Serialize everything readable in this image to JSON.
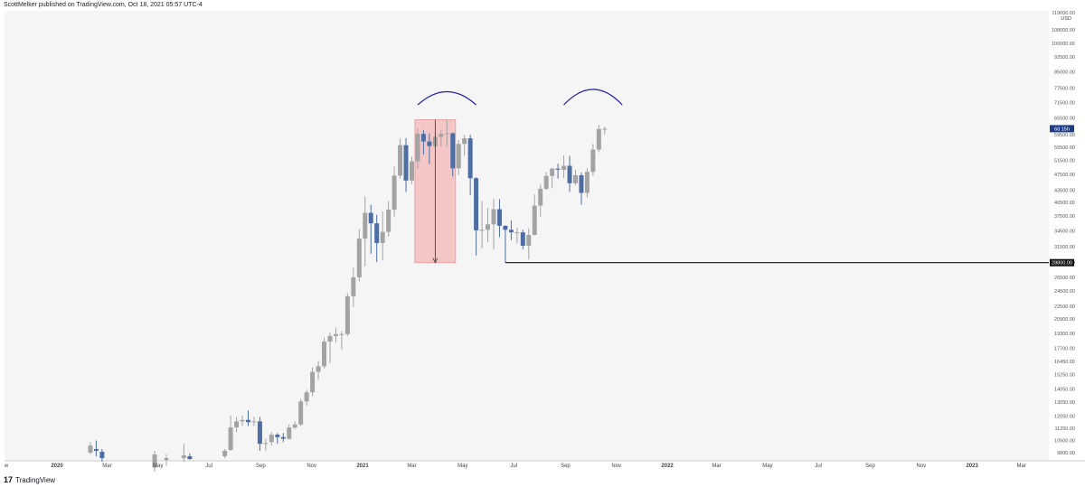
{
  "header": {
    "text": "ScottMelker published on TradingView.com, Oct 18, 2021 05:57 UTC-4"
  },
  "footer": {
    "logo": "17",
    "brand": "TradingView"
  },
  "colors": {
    "up": "#a3a3a3",
    "down": "#4e6ea3",
    "zone_fill": "#f5c6c6",
    "zone_stroke": "#e5a4a4",
    "arc": "#1c1fa8",
    "support": "#111111",
    "price_label_bg": "#1f3c8a",
    "plot_bg": "#f5f5f5"
  },
  "chart_data": {
    "type": "candlestick",
    "interval": "weekly",
    "currency": "USD",
    "y_scale": "log",
    "ylim": [
      9500,
      119000
    ],
    "grid": false,
    "y_ticks": [
      "119000.00",
      "108000.00",
      "100000.00",
      "92500.00",
      "85000.00",
      "77500.00",
      "71500.00",
      "65500.00",
      "59500.00",
      "55500.00",
      "51500.00",
      "47500.00",
      "43500.00",
      "40500.00",
      "37500.00",
      "34500.00",
      "31500.00",
      "28800.00",
      "26500.00",
      "24500.00",
      "22500.00",
      "20900.00",
      "19300.00",
      "17700.00",
      "16450.00",
      "15250.00",
      "14050.00",
      "13050.00",
      "12050.00",
      "11250.00",
      "10500.00",
      "9800.00"
    ],
    "x_ticks": [
      {
        "label": "w",
        "date": "2019-11-15"
      },
      {
        "label": "2020",
        "date": "2020-01-01",
        "bold": true
      },
      {
        "label": "Mar",
        "date": "2020-03-01"
      },
      {
        "label": "May",
        "date": "2020-05-01"
      },
      {
        "label": "Jul",
        "date": "2020-07-01"
      },
      {
        "label": "Sep",
        "date": "2020-09-01"
      },
      {
        "label": "Nov",
        "date": "2020-11-01"
      },
      {
        "label": "2021",
        "date": "2021-01-01",
        "bold": true
      },
      {
        "label": "Mar",
        "date": "2021-03-01"
      },
      {
        "label": "May",
        "date": "2021-05-01"
      },
      {
        "label": "Jul",
        "date": "2021-07-01"
      },
      {
        "label": "Sep",
        "date": "2021-09-01"
      },
      {
        "label": "Nov",
        "date": "2021-11-01"
      },
      {
        "label": "2022",
        "date": "2022-01-01",
        "bold": true
      },
      {
        "label": "Mar",
        "date": "2022-03-01"
      },
      {
        "label": "May",
        "date": "2022-05-01"
      },
      {
        "label": "Jul",
        "date": "2022-07-01"
      },
      {
        "label": "Sep",
        "date": "2022-09-01"
      },
      {
        "label": "Nov",
        "date": "2022-11-01"
      },
      {
        "label": "2023",
        "date": "2023-01-01",
        "bold": true
      },
      {
        "label": "Mar",
        "date": "2023-03-01"
      }
    ],
    "candles": [
      {
        "date": "2020-02-10",
        "o": 9800,
        "h": 10400,
        "l": 9700,
        "c": 10200
      },
      {
        "date": "2020-02-17",
        "o": 10000,
        "h": 10500,
        "l": 9600,
        "c": 9900
      },
      {
        "date": "2020-02-24",
        "o": 9850,
        "h": 10000,
        "l": 9300,
        "c": 9500
      },
      {
        "date": "2020-04-27",
        "o": 9000,
        "h": 9900,
        "l": 8800,
        "c": 9700
      },
      {
        "date": "2020-05-11",
        "o": 9400,
        "h": 9700,
        "l": 9100,
        "c": 9500
      },
      {
        "date": "2020-06-01",
        "o": 9500,
        "h": 10300,
        "l": 9300,
        "c": 9650
      },
      {
        "date": "2020-06-08",
        "o": 9600,
        "h": 9750,
        "l": 9400,
        "c": 9450
      },
      {
        "date": "2020-07-20",
        "o": 9600,
        "h": 10000,
        "l": 9500,
        "c": 9900
      },
      {
        "date": "2020-07-27",
        "o": 9950,
        "h": 12100,
        "l": 9900,
        "c": 11300
      },
      {
        "date": "2020-08-03",
        "o": 11300,
        "h": 12000,
        "l": 11000,
        "c": 11700
      },
      {
        "date": "2020-08-10",
        "o": 11700,
        "h": 12100,
        "l": 11400,
        "c": 11800
      },
      {
        "date": "2020-08-17",
        "o": 11800,
        "h": 12450,
        "l": 11400,
        "c": 11650
      },
      {
        "date": "2020-08-24",
        "o": 11650,
        "h": 12000,
        "l": 11400,
        "c": 11700
      },
      {
        "date": "2020-08-31",
        "o": 11700,
        "h": 12000,
        "l": 9900,
        "c": 10300
      },
      {
        "date": "2020-09-07",
        "o": 10300,
        "h": 10600,
        "l": 9900,
        "c": 10350
      },
      {
        "date": "2020-09-14",
        "o": 10400,
        "h": 11000,
        "l": 10200,
        "c": 10850
      },
      {
        "date": "2020-09-21",
        "o": 10850,
        "h": 10950,
        "l": 10300,
        "c": 10700
      },
      {
        "date": "2020-09-28",
        "o": 10700,
        "h": 10950,
        "l": 10400,
        "c": 10600
      },
      {
        "date": "2020-10-05",
        "o": 10600,
        "h": 11500,
        "l": 10550,
        "c": 11300
      },
      {
        "date": "2020-10-12",
        "o": 11300,
        "h": 11700,
        "l": 11200,
        "c": 11500
      },
      {
        "date": "2020-10-19",
        "o": 11500,
        "h": 13300,
        "l": 11400,
        "c": 13100
      },
      {
        "date": "2020-10-26",
        "o": 13100,
        "h": 14000,
        "l": 12800,
        "c": 13800
      },
      {
        "date": "2020-11-02",
        "o": 13800,
        "h": 15900,
        "l": 13500,
        "c": 15500
      },
      {
        "date": "2020-11-09",
        "o": 15500,
        "h": 16500,
        "l": 14800,
        "c": 16000
      },
      {
        "date": "2020-11-16",
        "o": 16000,
        "h": 18800,
        "l": 15800,
        "c": 18400
      },
      {
        "date": "2020-11-23",
        "o": 18400,
        "h": 19400,
        "l": 16300,
        "c": 19000
      },
      {
        "date": "2020-11-30",
        "o": 19000,
        "h": 19900,
        "l": 18300,
        "c": 19200
      },
      {
        "date": "2020-12-07",
        "o": 19200,
        "h": 19500,
        "l": 17600,
        "c": 19200
      },
      {
        "date": "2020-12-14",
        "o": 19200,
        "h": 24200,
        "l": 19000,
        "c": 23800
      },
      {
        "date": "2020-12-21",
        "o": 23800,
        "h": 28000,
        "l": 22400,
        "c": 26500
      },
      {
        "date": "2020-12-28",
        "o": 26500,
        "h": 34800,
        "l": 25900,
        "c": 33000
      },
      {
        "date": "2021-01-04",
        "o": 33000,
        "h": 41900,
        "l": 28200,
        "c": 38200
      },
      {
        "date": "2021-01-11",
        "o": 38200,
        "h": 40000,
        "l": 30300,
        "c": 36000
      },
      {
        "date": "2021-01-18",
        "o": 36000,
        "h": 37800,
        "l": 28900,
        "c": 32200
      },
      {
        "date": "2021-01-25",
        "o": 32200,
        "h": 38500,
        "l": 29200,
        "c": 34300
      },
      {
        "date": "2021-02-01",
        "o": 34300,
        "h": 40800,
        "l": 33400,
        "c": 38900
      },
      {
        "date": "2021-02-08",
        "o": 38900,
        "h": 49700,
        "l": 37400,
        "c": 47200
      },
      {
        "date": "2021-02-15",
        "o": 47200,
        "h": 58300,
        "l": 46400,
        "c": 56100
      },
      {
        "date": "2021-02-22",
        "o": 56100,
        "h": 58400,
        "l": 43000,
        "c": 45900
      },
      {
        "date": "2021-03-01",
        "o": 45900,
        "h": 52600,
        "l": 45000,
        "c": 51200
      },
      {
        "date": "2021-03-08",
        "o": 51200,
        "h": 61800,
        "l": 49100,
        "c": 59800
      },
      {
        "date": "2021-03-15",
        "o": 59800,
        "h": 61200,
        "l": 53200,
        "c": 57300
      },
      {
        "date": "2021-03-22",
        "o": 57300,
        "h": 60000,
        "l": 50400,
        "c": 55800
      },
      {
        "date": "2021-03-29",
        "o": 55800,
        "h": 60100,
        "l": 55100,
        "c": 58800
      },
      {
        "date": "2021-04-05",
        "o": 58800,
        "h": 61200,
        "l": 55600,
        "c": 59800
      },
      {
        "date": "2021-04-12",
        "o": 59800,
        "h": 64800,
        "l": 55500,
        "c": 60000
      },
      {
        "date": "2021-04-19",
        "o": 60000,
        "h": 60300,
        "l": 47000,
        "c": 49200
      },
      {
        "date": "2021-04-26",
        "o": 49200,
        "h": 57900,
        "l": 47400,
        "c": 56500
      },
      {
        "date": "2021-05-03",
        "o": 56500,
        "h": 59500,
        "l": 52800,
        "c": 58300
      },
      {
        "date": "2021-05-10",
        "o": 58300,
        "h": 59600,
        "l": 42200,
        "c": 46500
      },
      {
        "date": "2021-05-17",
        "o": 46500,
        "h": 46800,
        "l": 30000,
        "c": 34600
      },
      {
        "date": "2021-05-24",
        "o": 34600,
        "h": 40800,
        "l": 31200,
        "c": 34700
      },
      {
        "date": "2021-05-31",
        "o": 34700,
        "h": 39300,
        "l": 32400,
        "c": 35800
      },
      {
        "date": "2021-06-07",
        "o": 35800,
        "h": 41300,
        "l": 31000,
        "c": 39000
      },
      {
        "date": "2021-06-14",
        "o": 39000,
        "h": 41300,
        "l": 33300,
        "c": 35500
      },
      {
        "date": "2021-06-21",
        "o": 35500,
        "h": 35600,
        "l": 28800,
        "c": 34700
      },
      {
        "date": "2021-06-28",
        "o": 34700,
        "h": 36600,
        "l": 32700,
        "c": 34200
      },
      {
        "date": "2021-07-05",
        "o": 34200,
        "h": 35100,
        "l": 32100,
        "c": 34200
      },
      {
        "date": "2021-07-12",
        "o": 34200,
        "h": 34700,
        "l": 31100,
        "c": 31700
      },
      {
        "date": "2021-07-19",
        "o": 31700,
        "h": 35000,
        "l": 29300,
        "c": 33700
      },
      {
        "date": "2021-07-26",
        "o": 33700,
        "h": 42400,
        "l": 33600,
        "c": 39800
      },
      {
        "date": "2021-08-02",
        "o": 39800,
        "h": 44800,
        "l": 37400,
        "c": 43800
      },
      {
        "date": "2021-08-09",
        "o": 43800,
        "h": 48100,
        "l": 43500,
        "c": 47100
      },
      {
        "date": "2021-08-16",
        "o": 47100,
        "h": 49400,
        "l": 43900,
        "c": 49100
      },
      {
        "date": "2021-08-23",
        "o": 49100,
        "h": 50500,
        "l": 46400,
        "c": 48800
      },
      {
        "date": "2021-08-30",
        "o": 48800,
        "h": 52900,
        "l": 46500,
        "c": 49900
      },
      {
        "date": "2021-09-06",
        "o": 49900,
        "h": 52800,
        "l": 43000,
        "c": 45200
      },
      {
        "date": "2021-09-13",
        "o": 45200,
        "h": 48800,
        "l": 44700,
        "c": 47300
      },
      {
        "date": "2021-09-20",
        "o": 47300,
        "h": 48000,
        "l": 40000,
        "c": 42800
      },
      {
        "date": "2021-09-27",
        "o": 42800,
        "h": 49200,
        "l": 41700,
        "c": 48200
      },
      {
        "date": "2021-10-04",
        "o": 48200,
        "h": 56500,
        "l": 47100,
        "c": 54700
      },
      {
        "date": "2021-10-11",
        "o": 54700,
        "h": 62900,
        "l": 53900,
        "c": 61500
      },
      {
        "date": "2021-10-18",
        "o": 61500,
        "h": 62300,
        "l": 59600,
        "c": 61600
      }
    ],
    "annotations": {
      "zone": {
        "from": "2021-03-08",
        "to": "2021-04-19",
        "top": 64800,
        "bottom": 28800
      },
      "arrow": {
        "date": "2021-03-29",
        "from": 64800,
        "to": 28800
      },
      "arcs": [
        {
          "from": "2021-03-08",
          "to": "2021-05-17",
          "base": 70500,
          "peak": 76000
        },
        {
          "from": "2021-08-30",
          "to": "2021-11-08",
          "base": 70500,
          "peak": 77000
        }
      ],
      "support": {
        "from": "2021-06-21",
        "price": 28800
      }
    },
    "price_labels": [
      {
        "price": 61600,
        "text": "6d 15h",
        "bg": "#1f3c8a"
      },
      {
        "price": 28800,
        "text": "28800.00",
        "bg": "#111111"
      }
    ],
    "axis_unit": "USD"
  }
}
